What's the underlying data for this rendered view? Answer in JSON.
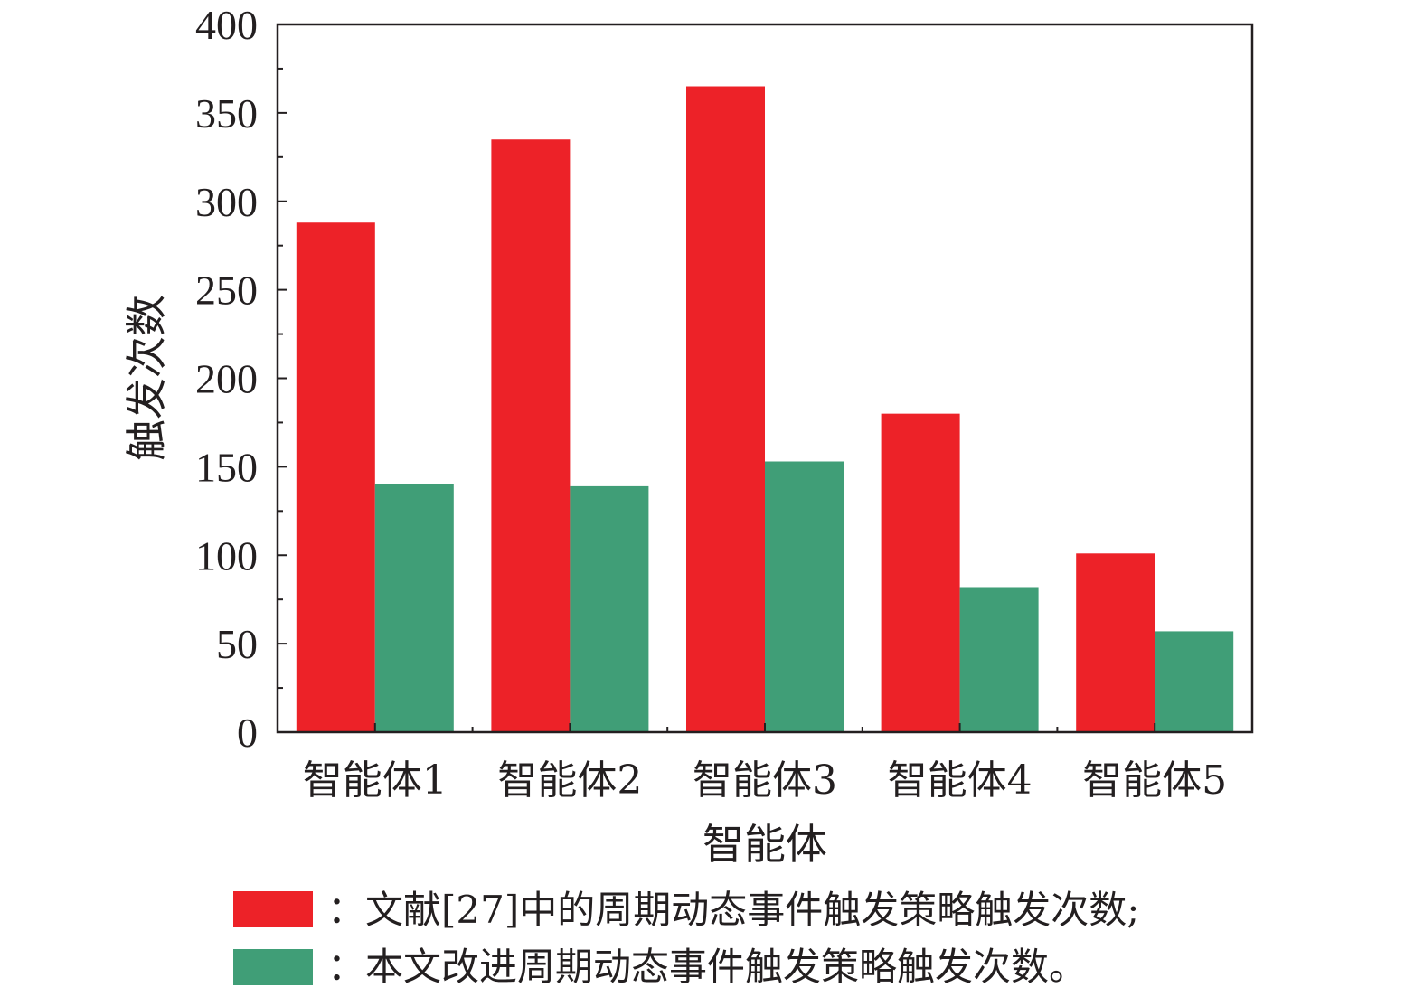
{
  "chart_data": {
    "type": "bar",
    "categories": [
      "智能体1",
      "智能体2",
      "智能体3",
      "智能体4",
      "智能体5"
    ],
    "series": [
      {
        "name": "：文献[27]中的周期动态事件触发策略触发次数;",
        "color": "#ed2228",
        "values": [
          288,
          335,
          365,
          180,
          101
        ]
      },
      {
        "name": "：本文改进周期动态事件触发策略触发次数。",
        "color": "#409e77",
        "values": [
          140,
          139,
          153,
          82,
          57
        ]
      }
    ],
    "xlabel": "智能体",
    "ylabel": "触发次数",
    "ylim": [
      0,
      400
    ],
    "yticks": [
      0,
      50,
      100,
      150,
      200,
      250,
      300,
      350,
      400
    ],
    "grid": false,
    "legend_position": "bottom"
  }
}
